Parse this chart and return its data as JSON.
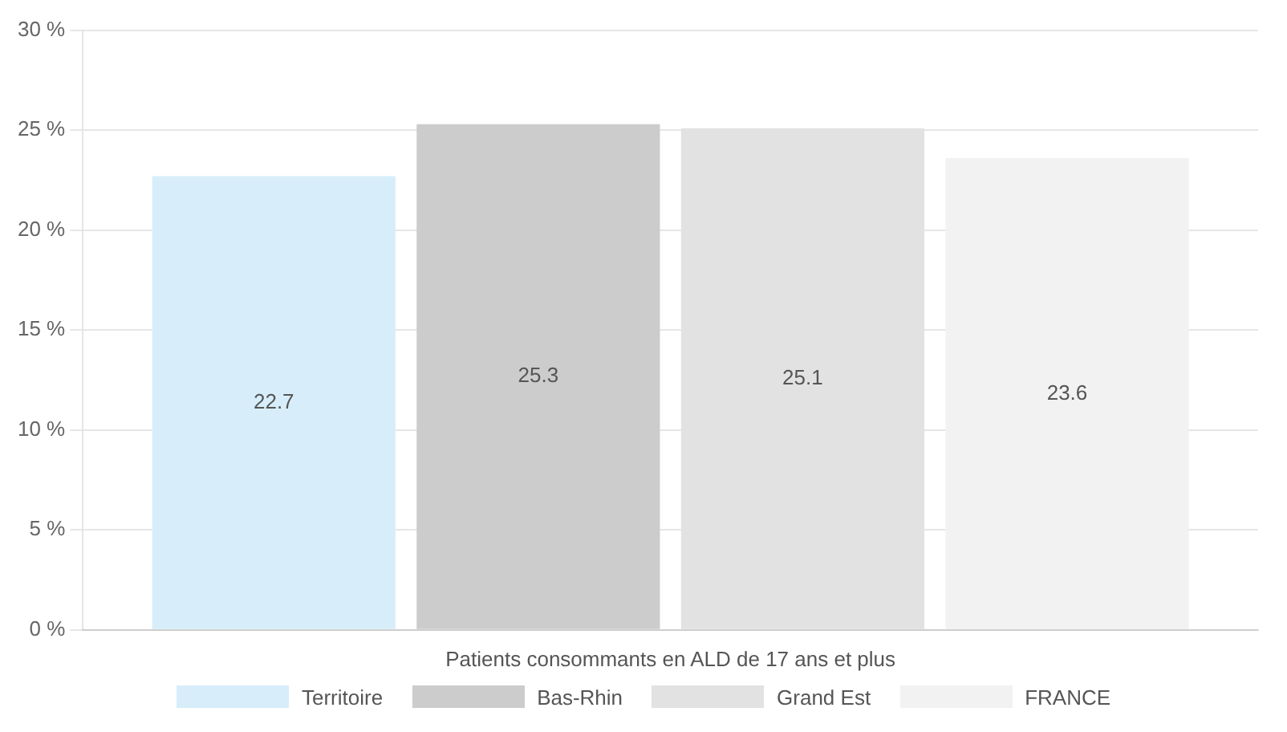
{
  "chart_data": {
    "type": "bar",
    "categories": [
      "Patients consommants en ALD de 17 ans et plus"
    ],
    "series": [
      {
        "name": "Territoire",
        "color": "#d7eefa",
        "values": [
          22.7
        ]
      },
      {
        "name": "Bas-Rhin",
        "color": "#cccccc",
        "values": [
          25.3
        ]
      },
      {
        "name": "Grand Est",
        "color": "#e2e2e2",
        "values": [
          25.1
        ]
      },
      {
        "name": "FRANCE",
        "color": "#f2f2f2",
        "values": [
          23.6
        ]
      }
    ],
    "ylim": [
      0,
      30
    ],
    "yticks": [
      {
        "value": 0,
        "label": "0 %"
      },
      {
        "value": 5,
        "label": "5 %"
      },
      {
        "value": 10,
        "label": "10 %"
      },
      {
        "value": 15,
        "label": "15 %"
      },
      {
        "value": 20,
        "label": "20 %"
      },
      {
        "value": 25,
        "label": "25 %"
      },
      {
        "value": 30,
        "label": "30 %"
      }
    ],
    "grid": "y",
    "legend": "bottom",
    "data_labels": true
  }
}
